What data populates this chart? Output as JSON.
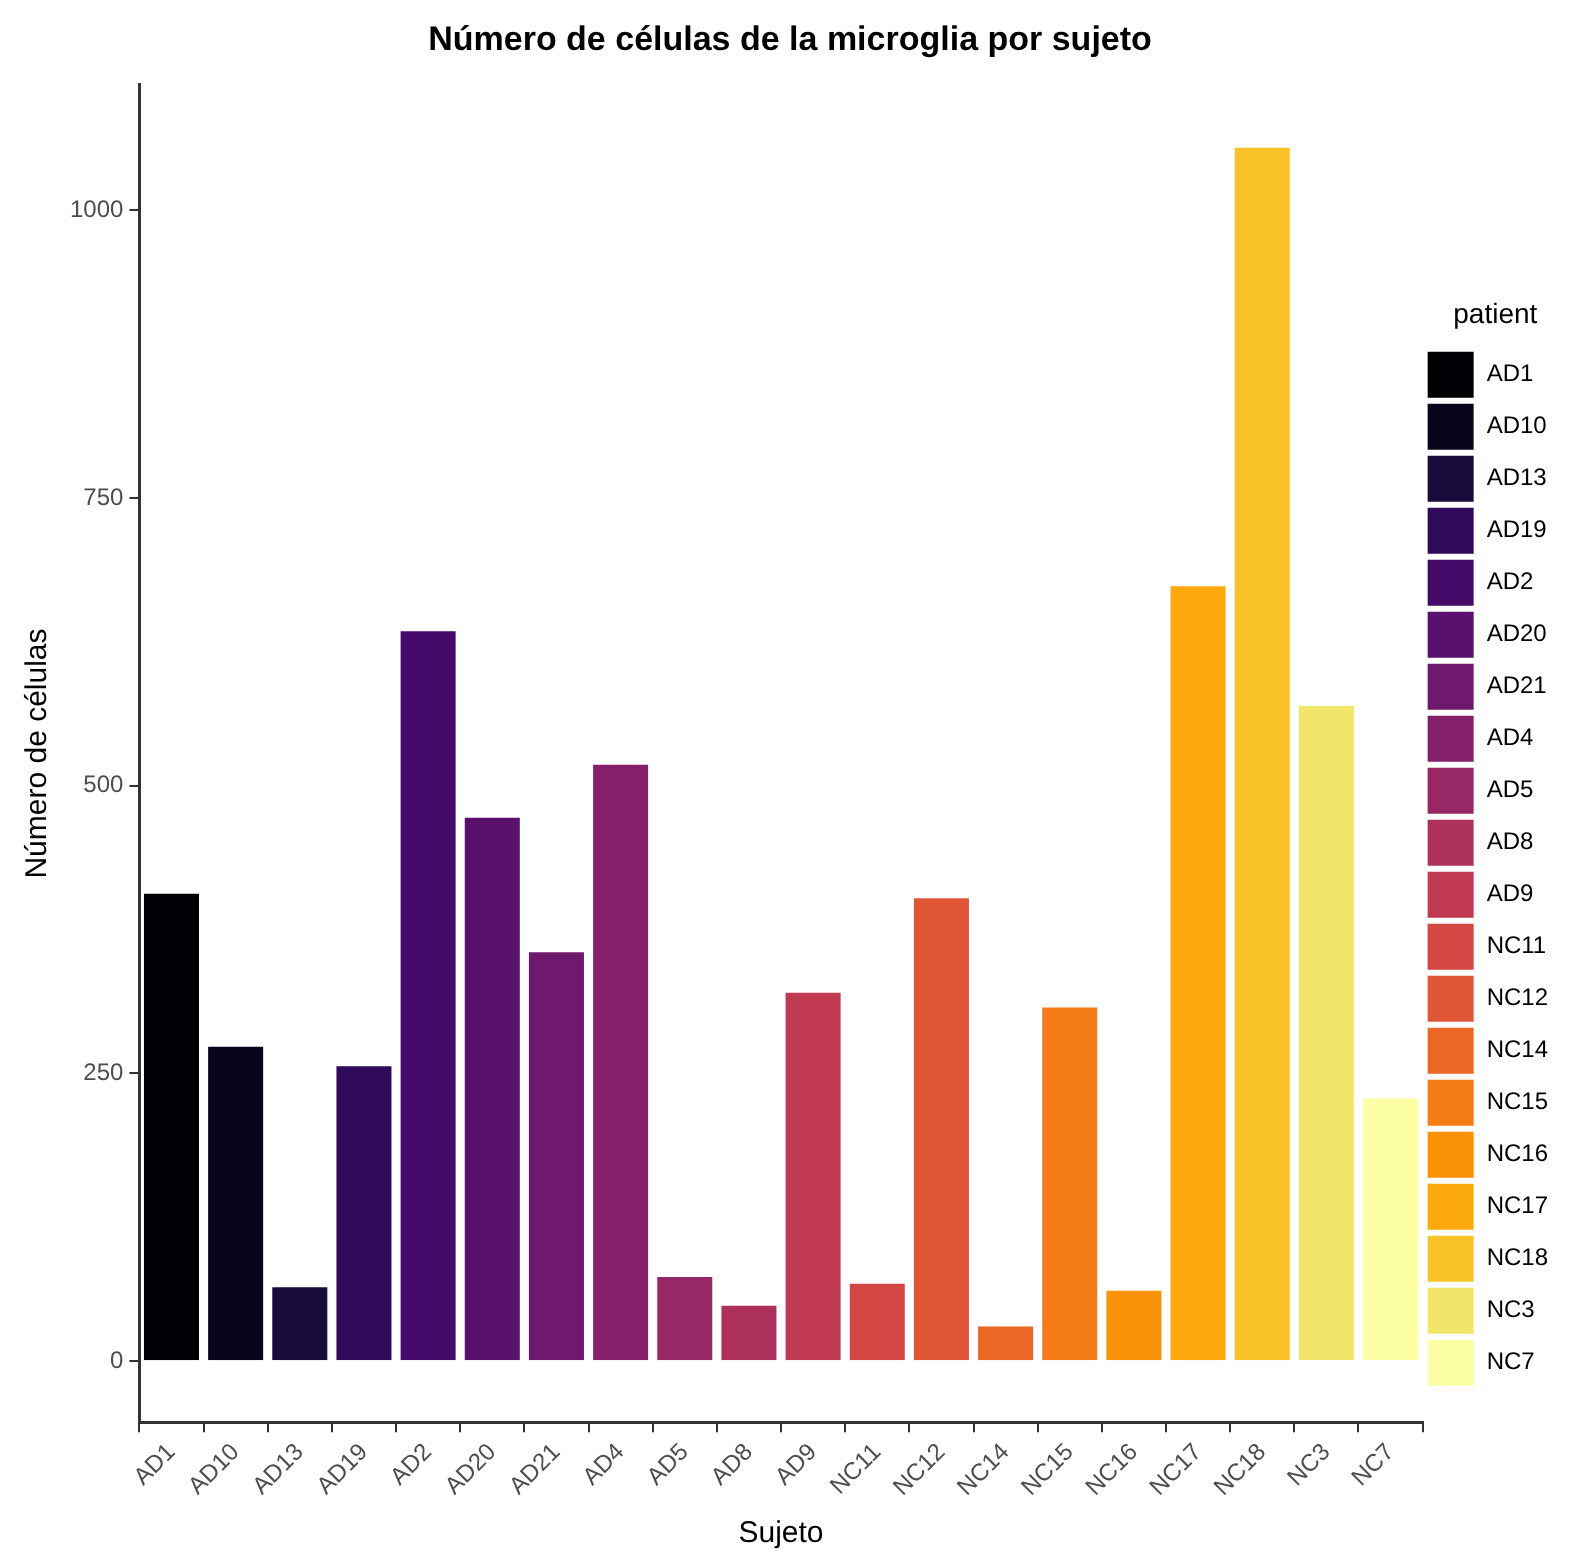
{
  "chart_data": {
    "type": "bar",
    "title": "Número de células de la microglia por sujeto",
    "xlabel": "Sujeto",
    "ylabel": "Número de células",
    "legend_title": "patient",
    "legend": "right",
    "grid": false,
    "categories": [
      "AD1",
      "AD10",
      "AD13",
      "AD19",
      "AD2",
      "AD20",
      "AD21",
      "AD4",
      "AD5",
      "AD8",
      "AD9",
      "NC11",
      "NC12",
      "NC14",
      "NC15",
      "NC16",
      "NC17",
      "NC18",
      "NC3",
      "NC7"
    ],
    "series": [
      {
        "name": "AD1",
        "color": "#000004",
        "values": [
          408,
          null,
          null,
          null,
          null,
          null,
          null,
          null,
          null,
          null,
          null,
          null,
          null,
          null,
          null,
          null,
          null,
          null,
          null,
          null
        ]
      },
      {
        "name": "AD10",
        "color": "#08051d",
        "values": [
          null,
          275,
          null,
          null,
          null,
          null,
          null,
          null,
          null,
          null,
          null,
          null,
          null,
          null,
          null,
          null,
          null,
          null,
          null,
          null
        ]
      },
      {
        "name": "AD13",
        "color": "#180c3c",
        "values": [
          null,
          null,
          66,
          null,
          null,
          null,
          null,
          null,
          null,
          null,
          null,
          null,
          null,
          null,
          null,
          null,
          null,
          null,
          null,
          null
        ]
      },
      {
        "name": "AD19",
        "color": "#2f0a5b",
        "values": [
          null,
          null,
          null,
          258,
          null,
          null,
          null,
          null,
          null,
          null,
          null,
          null,
          null,
          null,
          null,
          null,
          null,
          null,
          null,
          null
        ]
      },
      {
        "name": "AD2",
        "color": "#450a69",
        "values": [
          null,
          null,
          null,
          null,
          636,
          null,
          null,
          null,
          null,
          null,
          null,
          null,
          null,
          null,
          null,
          null,
          null,
          null,
          null,
          null
        ]
      },
      {
        "name": "AD20",
        "color": "#5a116e",
        "values": [
          null,
          null,
          null,
          null,
          null,
          474,
          null,
          null,
          null,
          null,
          null,
          null,
          null,
          null,
          null,
          null,
          null,
          null,
          null,
          null
        ]
      },
      {
        "name": "AD21",
        "color": "#6f196e",
        "values": [
          null,
          null,
          null,
          null,
          null,
          null,
          357,
          null,
          null,
          null,
          null,
          null,
          null,
          null,
          null,
          null,
          null,
          null,
          null,
          null
        ]
      },
      {
        "name": "AD4",
        "color": "#841f6c",
        "values": [
          null,
          null,
          null,
          null,
          null,
          null,
          null,
          520,
          null,
          null,
          null,
          null,
          null,
          null,
          null,
          null,
          null,
          null,
          null,
          null
        ]
      },
      {
        "name": "AD5",
        "color": "#982766",
        "values": [
          null,
          null,
          null,
          null,
          null,
          null,
          null,
          null,
          75,
          null,
          null,
          null,
          null,
          null,
          null,
          null,
          null,
          null,
          null,
          null
        ]
      },
      {
        "name": "AD8",
        "color": "#ad305d",
        "values": [
          null,
          null,
          null,
          null,
          null,
          null,
          null,
          null,
          null,
          50,
          null,
          null,
          null,
          null,
          null,
          null,
          null,
          null,
          null,
          null
        ]
      },
      {
        "name": "AD9",
        "color": "#c03a51",
        "values": [
          null,
          null,
          null,
          null,
          null,
          null,
          null,
          null,
          null,
          null,
          322,
          null,
          null,
          null,
          null,
          null,
          null,
          null,
          null,
          null
        ]
      },
      {
        "name": "NC11",
        "color": "#d24644",
        "values": [
          null,
          null,
          null,
          null,
          null,
          null,
          null,
          null,
          null,
          null,
          null,
          69,
          null,
          null,
          null,
          null,
          null,
          null,
          null,
          null
        ]
      },
      {
        "name": "NC12",
        "color": "#e05536",
        "values": [
          null,
          null,
          null,
          null,
          null,
          null,
          null,
          null,
          null,
          null,
          null,
          null,
          404,
          null,
          null,
          null,
          null,
          null,
          null,
          null
        ]
      },
      {
        "name": "NC14",
        "color": "#ec6726",
        "values": [
          null,
          null,
          null,
          null,
          null,
          null,
          null,
          null,
          null,
          null,
          null,
          null,
          null,
          32,
          null,
          null,
          null,
          null,
          null,
          null
        ]
      },
      {
        "name": "NC15",
        "color": "#f57b17",
        "values": [
          null,
          null,
          null,
          null,
          null,
          null,
          null,
          null,
          null,
          null,
          null,
          null,
          null,
          null,
          309,
          null,
          null,
          null,
          null,
          null
        ]
      },
      {
        "name": "NC16",
        "color": "#fa9207",
        "values": [
          null,
          null,
          null,
          null,
          null,
          null,
          null,
          null,
          null,
          null,
          null,
          null,
          null,
          null,
          null,
          63,
          null,
          null,
          null,
          null
        ]
      },
      {
        "name": "NC17",
        "color": "#fca90d",
        "values": [
          null,
          null,
          null,
          null,
          null,
          null,
          null,
          null,
          null,
          null,
          null,
          null,
          null,
          null,
          null,
          null,
          675,
          null,
          null,
          null
        ]
      },
      {
        "name": "NC18",
        "color": "#f9c229",
        "values": [
          null,
          null,
          null,
          null,
          null,
          null,
          null,
          null,
          null,
          null,
          null,
          null,
          null,
          null,
          null,
          null,
          null,
          1056,
          null,
          null
        ]
      },
      {
        "name": "NC3",
        "color": "#f2e66a",
        "values": [
          null,
          null,
          null,
          null,
          null,
          null,
          null,
          null,
          null,
          null,
          null,
          null,
          null,
          null,
          null,
          null,
          null,
          null,
          571,
          null
        ]
      },
      {
        "name": "NC7",
        "color": "#fcffa4",
        "values": [
          null,
          null,
          null,
          null,
          null,
          null,
          null,
          null,
          null,
          null,
          null,
          null,
          null,
          null,
          null,
          null,
          null,
          null,
          null,
          230
        ]
      }
    ],
    "ylim": [
      -53,
      1109
    ],
    "yticks": [
      0,
      250,
      500,
      750,
      1000
    ]
  }
}
